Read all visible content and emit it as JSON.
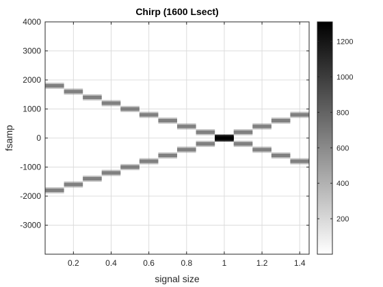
{
  "chart_data": {
    "type": "heatmap",
    "title": "Chirp (1600 Lsect)",
    "xlabel": "signal size",
    "ylabel": "fsamp",
    "xlim": [
      0.05,
      1.45
    ],
    "ylim": [
      -4000,
      4000
    ],
    "x_ticks": [
      0.2,
      0.4,
      0.6,
      0.8,
      1,
      1.2,
      1.4
    ],
    "y_ticks": [
      4000,
      3000,
      2000,
      1000,
      0,
      -1000,
      -2000,
      -3000
    ],
    "colormap": "gray (inverted: white = low, black = high)",
    "grid": true,
    "colorbar": {
      "range": [
        0,
        1310
      ],
      "ticks": [
        200,
        400,
        600,
        800,
        1000,
        1200
      ],
      "position": "right"
    },
    "segment_width": 0.1,
    "bands": [
      {
        "name": "descending",
        "centers_x": [
          0.1,
          0.2,
          0.3,
          0.4,
          0.5,
          0.6,
          0.7,
          0.8,
          0.9,
          1.0,
          1.1,
          1.2,
          1.3,
          1.4
        ],
        "freq": [
          1800,
          1600,
          1400,
          1200,
          1000,
          800,
          600,
          400,
          200,
          0,
          -200,
          -400,
          -600,
          -800
        ],
        "magnitude": [
          650,
          650,
          650,
          650,
          650,
          650,
          650,
          650,
          650,
          1300,
          650,
          650,
          650,
          650
        ]
      },
      {
        "name": "ascending",
        "centers_x": [
          0.1,
          0.2,
          0.3,
          0.4,
          0.5,
          0.6,
          0.7,
          0.8,
          0.9,
          1.0,
          1.1,
          1.2,
          1.3,
          1.4
        ],
        "freq": [
          -1800,
          -1600,
          -1400,
          -1200,
          -1000,
          -800,
          -600,
          -400,
          -200,
          0,
          200,
          400,
          600,
          800
        ],
        "magnitude": [
          650,
          650,
          650,
          650,
          650,
          650,
          650,
          650,
          650,
          1300,
          650,
          650,
          650,
          650
        ]
      }
    ]
  }
}
